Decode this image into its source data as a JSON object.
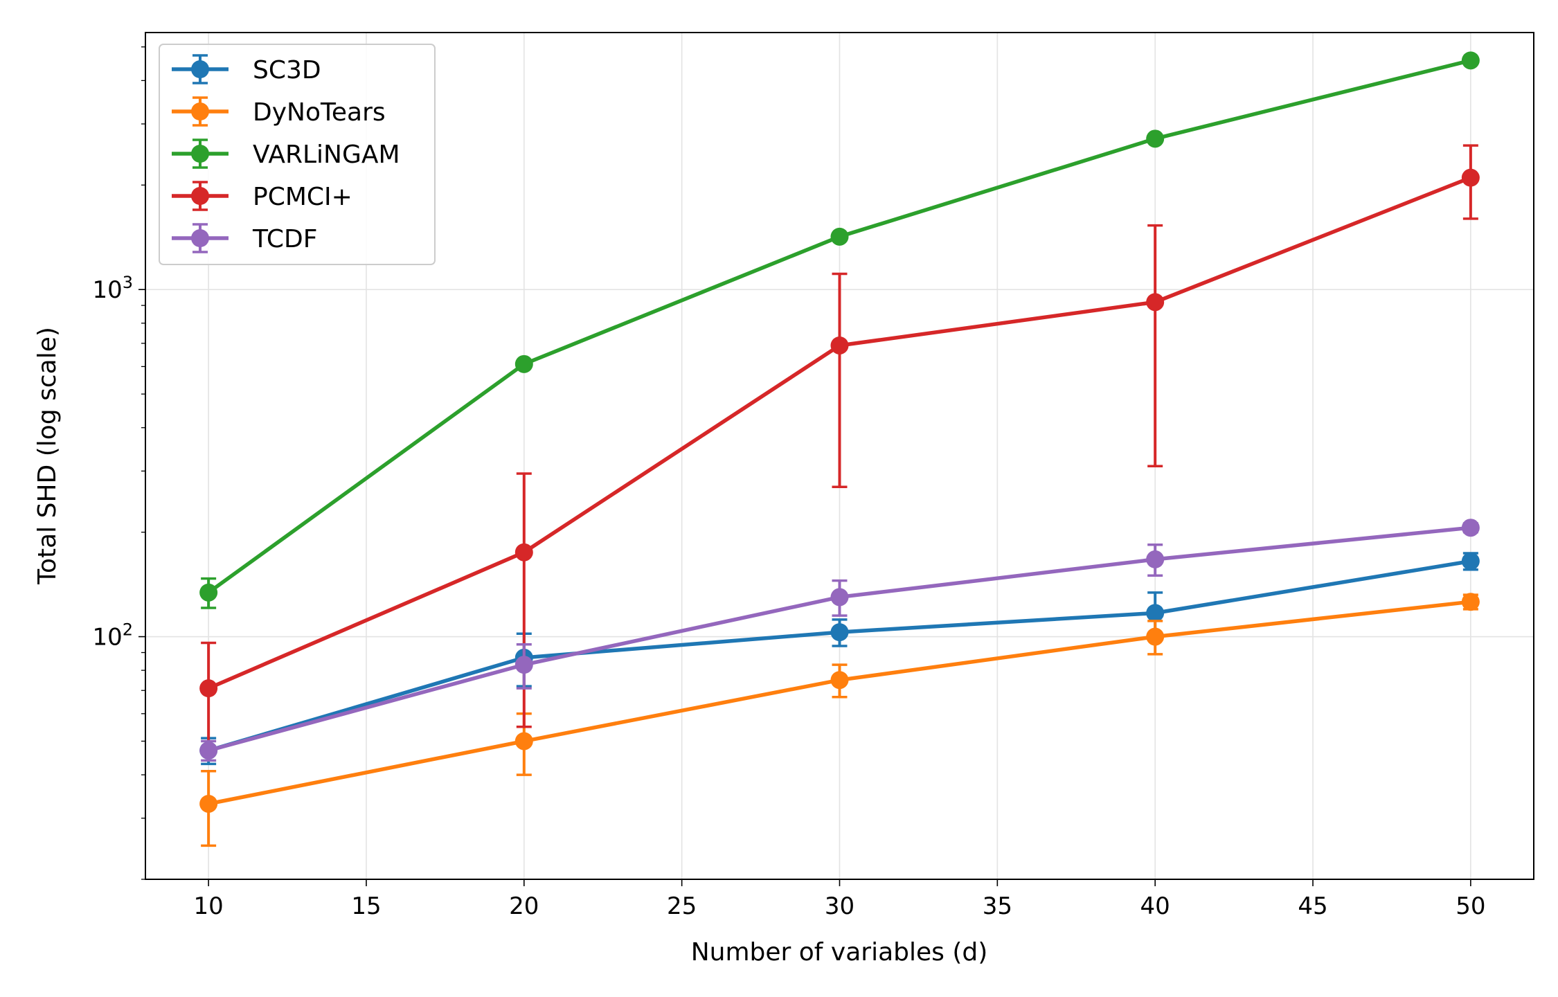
{
  "chart_data": {
    "type": "line",
    "title": "",
    "xlabel": "Number of variables (d)",
    "ylabel": "Total SHD (log scale)",
    "yscale": "log",
    "xlim": [
      8,
      52
    ],
    "ylim": [
      20,
      5500
    ],
    "grid": true,
    "legend_position": "top-left",
    "x": [
      10,
      20,
      30,
      40,
      50
    ],
    "x_ticks": [
      10,
      15,
      20,
      25,
      30,
      35,
      40,
      45,
      50
    ],
    "x_tick_labels": [
      "10",
      "15",
      "20",
      "25",
      "30",
      "35",
      "40",
      "45",
      "50"
    ],
    "y_major_ticks": [
      100,
      1000
    ],
    "y_tick_labels": [
      {
        "base": "10",
        "exp": "2"
      },
      {
        "base": "10",
        "exp": "3"
      }
    ],
    "series": [
      {
        "name": "SC3D",
        "color": "#1f77b4",
        "values": [
          47,
          87,
          103,
          117,
          165
        ],
        "err": [
          4,
          15,
          9,
          17,
          9
        ]
      },
      {
        "name": "DyNoTears",
        "color": "#ff7f0e",
        "values": [
          33,
          50,
          75,
          100,
          126
        ],
        "err": [
          8,
          10,
          8,
          11,
          6
        ]
      },
      {
        "name": "VARLiNGAM",
        "color": "#2ca02c",
        "values": [
          134,
          610,
          1420,
          2720,
          4570
        ],
        "err": [
          13,
          0,
          0,
          0,
          0
        ]
      },
      {
        "name": "PCMCI+",
        "color": "#d62728",
        "values": [
          71,
          175,
          690,
          920,
          2100
        ],
        "err": [
          25,
          120,
          420,
          610,
          500
        ]
      },
      {
        "name": "TCDF",
        "color": "#9467bd",
        "values": [
          47,
          83,
          130,
          167,
          206
        ],
        "err": [
          3,
          12,
          15,
          17,
          6
        ]
      }
    ]
  }
}
